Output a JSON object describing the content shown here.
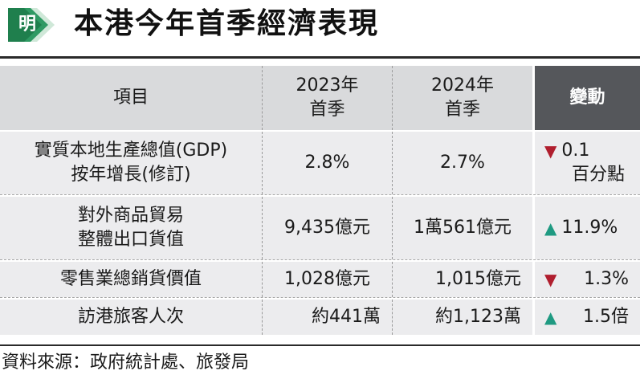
{
  "header": {
    "logo_char": "明",
    "title": "本港今年首季經濟表現"
  },
  "table": {
    "columns": [
      {
        "label_line1": "項目",
        "label_line2": ""
      },
      {
        "label_line1": "2023年",
        "label_line2": "首季"
      },
      {
        "label_line1": "2024年",
        "label_line2": "首季"
      },
      {
        "label_line1": "變動",
        "label_line2": ""
      }
    ],
    "rows": [
      {
        "item_line1": "實質本地生產總值(GDP)",
        "item_line2": "按年增長(修訂)",
        "q1_2023": "2.8%",
        "q1_2024": "2.7%",
        "direction": "down",
        "arrow": "▼",
        "change_line1": "0.1",
        "change_line2": "百分點"
      },
      {
        "item_line1": "對外商品貿易",
        "item_line2": "整體出口貨值",
        "q1_2023": "9,435億元",
        "q1_2024": "1萬561億元",
        "direction": "up",
        "arrow": "▲",
        "change_line1": "11.9%",
        "change_line2": ""
      },
      {
        "item_line1": "零售業總銷貨價值",
        "item_line2": "",
        "q1_2023": "1,028億元",
        "q1_2024": "1,015億元",
        "direction": "down",
        "arrow": "▼",
        "change_line1": "1.3%",
        "change_line2": ""
      },
      {
        "item_line1": "訪港旅客人次",
        "item_line2": "",
        "q1_2023": "約441萬",
        "q1_2024": "約1,123萬",
        "direction": "up",
        "arrow": "▲",
        "change_line1": "1.5倍",
        "change_line2": ""
      }
    ]
  },
  "footer": {
    "source": "資料來源：政府統計處、旅發局"
  },
  "colors": {
    "header_grey": "#d9dadc",
    "header_dark": "#55575b",
    "row_grey": "#ececee",
    "down_red": "#b01e2e",
    "up_teal": "#1f9a82",
    "logo_green": "#2f9a63"
  }
}
